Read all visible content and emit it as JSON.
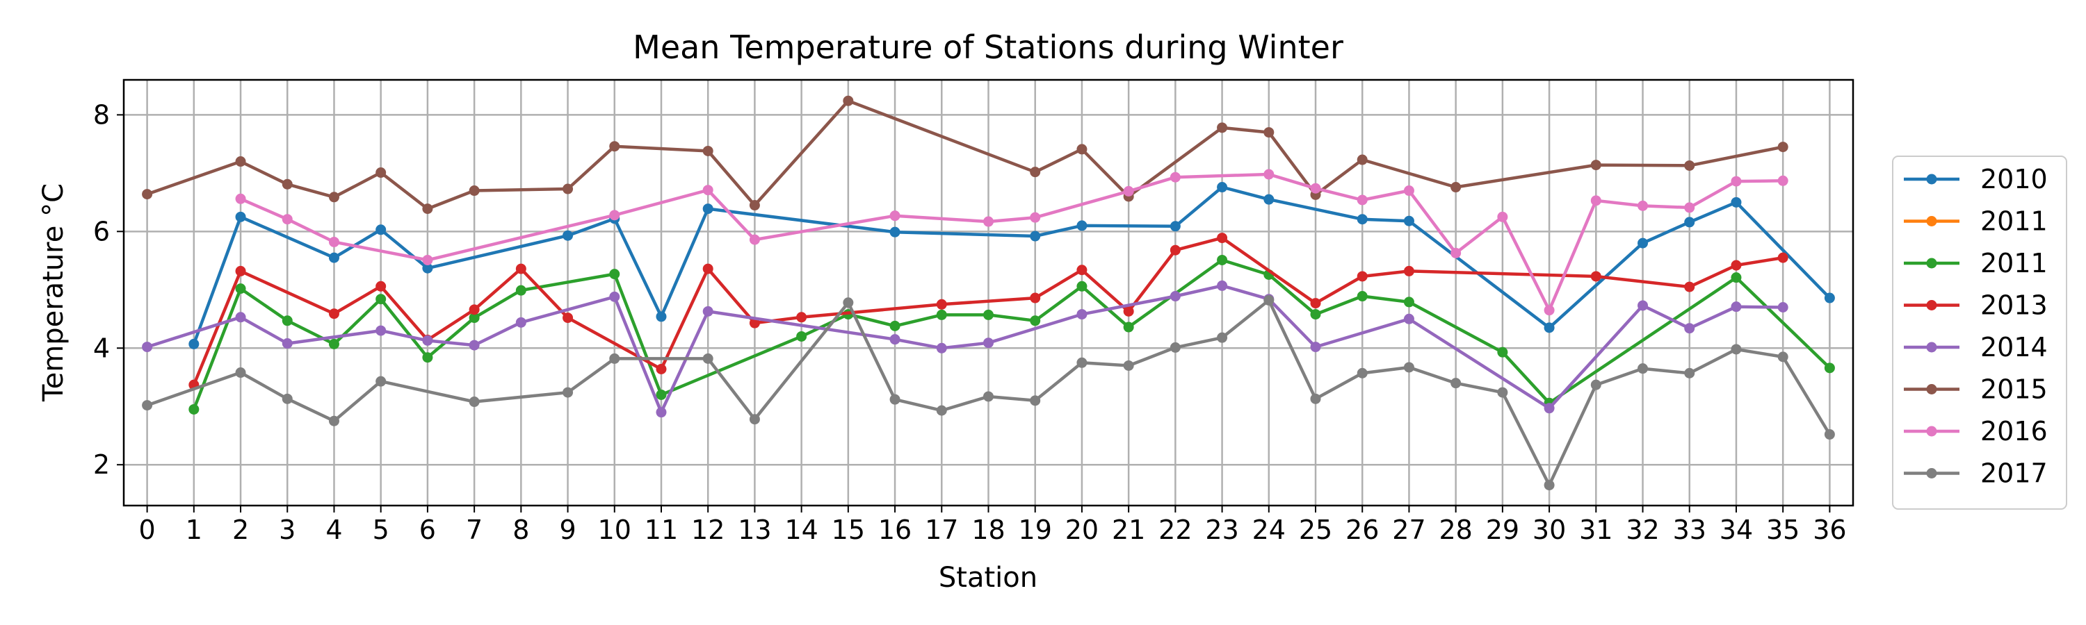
{
  "chart_data": {
    "type": "line",
    "title": "Mean Temperature of Stations during Winter",
    "xlabel": "Station",
    "ylabel": "Temperature  °C",
    "xlim": [
      -0.5,
      36.5
    ],
    "ylim": [
      1.3,
      8.6
    ],
    "xticks": [
      0,
      1,
      2,
      3,
      4,
      5,
      6,
      7,
      8,
      9,
      10,
      11,
      12,
      13,
      14,
      15,
      16,
      17,
      18,
      19,
      20,
      21,
      22,
      23,
      24,
      25,
      26,
      27,
      28,
      29,
      30,
      31,
      32,
      33,
      34,
      35,
      36
    ],
    "yticks": [
      2,
      4,
      6,
      8
    ],
    "grid": true,
    "legend_position": "right",
    "series": [
      {
        "name": "2010",
        "color": "#1f77b4",
        "x": [
          1,
          2,
          4,
          5,
          6,
          9,
          10,
          11,
          12,
          16,
          19,
          20,
          22,
          23,
          24,
          26,
          27,
          30,
          32,
          33,
          34,
          36
        ],
        "y": [
          4.07,
          6.25,
          5.55,
          6.03,
          5.37,
          5.93,
          6.22,
          4.54,
          6.39,
          5.99,
          5.92,
          6.1,
          6.09,
          6.76,
          6.55,
          6.21,
          6.18,
          4.35,
          5.8,
          6.16,
          6.5,
          4.86
        ]
      },
      {
        "name": "2011",
        "color": "#ff7f0e",
        "x": [],
        "y": []
      },
      {
        "name": "2011",
        "color": "#2ca02c",
        "x": [
          1,
          2,
          3,
          4,
          5,
          6,
          7,
          8,
          10,
          11,
          14,
          15,
          16,
          17,
          18,
          19,
          20,
          21,
          23,
          24,
          25,
          26,
          27,
          29,
          30,
          34,
          36
        ],
        "y": [
          2.95,
          5.02,
          4.47,
          4.07,
          4.84,
          3.84,
          4.52,
          4.99,
          5.27,
          3.2,
          4.2,
          4.58,
          4.38,
          4.57,
          4.57,
          4.47,
          5.06,
          4.36,
          5.51,
          5.26,
          4.58,
          4.89,
          4.79,
          3.93,
          3.06,
          5.21,
          3.66
        ]
      },
      {
        "name": "2013",
        "color": "#d62728",
        "x": [
          1,
          2,
          4,
          5,
          6,
          7,
          8,
          9,
          11,
          12,
          13,
          14,
          17,
          19,
          20,
          21,
          22,
          23,
          25,
          26,
          27,
          31,
          33,
          34,
          35
        ],
        "y": [
          3.37,
          5.32,
          4.59,
          5.06,
          4.14,
          4.66,
          5.36,
          4.52,
          3.64,
          5.36,
          4.43,
          4.53,
          4.75,
          4.86,
          5.34,
          4.63,
          5.68,
          5.89,
          4.77,
          5.23,
          5.32,
          5.23,
          5.05,
          5.42,
          5.55
        ]
      },
      {
        "name": "2014",
        "color": "#9467bd",
        "x": [
          0,
          2,
          3,
          5,
          6,
          7,
          8,
          10,
          11,
          12,
          16,
          17,
          18,
          20,
          22,
          23,
          24,
          25,
          27,
          30,
          32,
          33,
          34,
          35
        ],
        "y": [
          4.02,
          4.53,
          4.08,
          4.3,
          4.13,
          4.05,
          4.44,
          4.88,
          2.9,
          4.63,
          4.15,
          4.0,
          4.09,
          4.58,
          4.89,
          5.07,
          4.84,
          4.02,
          4.5,
          2.97,
          4.73,
          4.34,
          4.71,
          4.7
        ]
      },
      {
        "name": "2015",
        "color": "#8c564b",
        "x": [
          0,
          2,
          3,
          4,
          5,
          6,
          7,
          9,
          10,
          12,
          13,
          15,
          19,
          20,
          21,
          23,
          24,
          25,
          26,
          28,
          31,
          33,
          35
        ],
        "y": [
          6.64,
          7.2,
          6.81,
          6.59,
          7.01,
          6.39,
          6.7,
          6.73,
          7.46,
          7.38,
          6.45,
          8.24,
          7.02,
          7.41,
          6.6,
          7.78,
          7.7,
          6.63,
          7.23,
          6.76,
          7.14,
          7.13,
          7.45
        ]
      },
      {
        "name": "2016",
        "color": "#e377c2",
        "x": [
          2,
          3,
          4,
          6,
          10,
          12,
          13,
          16,
          18,
          19,
          21,
          22,
          24,
          25,
          26,
          27,
          28,
          29,
          30,
          31,
          32,
          33,
          34,
          35
        ],
        "y": [
          6.56,
          6.21,
          5.82,
          5.51,
          6.28,
          6.71,
          5.86,
          6.27,
          6.17,
          6.24,
          6.69,
          6.93,
          6.98,
          6.74,
          6.54,
          6.7,
          5.63,
          6.25,
          4.65,
          6.53,
          6.44,
          6.41,
          6.86,
          6.87
        ]
      },
      {
        "name": "2017",
        "color": "#7f7f7f",
        "x": [
          0,
          2,
          3,
          4,
          5,
          7,
          9,
          10,
          12,
          13,
          15,
          16,
          17,
          18,
          19,
          20,
          21,
          22,
          23,
          24,
          25,
          26,
          27,
          28,
          29,
          30,
          31,
          32,
          33,
          34,
          35,
          36
        ],
        "y": [
          3.02,
          3.58,
          3.13,
          2.75,
          3.43,
          3.08,
          3.24,
          3.82,
          3.82,
          2.78,
          4.78,
          3.12,
          2.93,
          3.17,
          3.1,
          3.75,
          3.7,
          4.01,
          4.18,
          4.82,
          3.13,
          3.57,
          3.67,
          3.4,
          3.24,
          1.65,
          3.37,
          3.65,
          3.57,
          3.98,
          3.85,
          2.52
        ]
      }
    ]
  }
}
